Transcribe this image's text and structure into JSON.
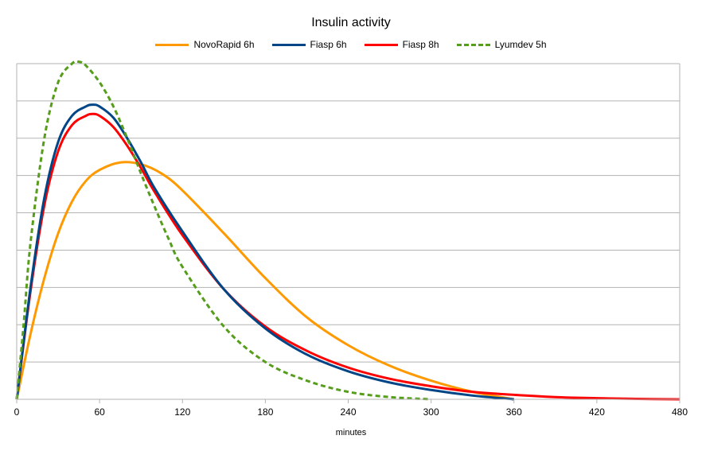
{
  "chart_data": {
    "type": "line",
    "title": "Insulin activity",
    "xlabel": "minutes",
    "ylabel": "",
    "xlim": [
      0,
      480
    ],
    "ylim": [
      0,
      9
    ],
    "xticks": [
      0,
      60,
      120,
      180,
      240,
      300,
      360,
      420,
      480
    ],
    "x_tick_labels": [
      "0",
      "60",
      "120",
      "180",
      "240",
      "300",
      "360",
      "420",
      "480"
    ],
    "y_gridlines": [
      1,
      2,
      3,
      4,
      5,
      6,
      7,
      8,
      9
    ],
    "y_tick_labels_shown": false,
    "grid": true,
    "legend_position": "top",
    "series": [
      {
        "name": "NovoRapid 6h",
        "color": "#ff9900",
        "dash": "solid",
        "x": [
          0,
          10,
          20,
          30,
          40,
          50,
          60,
          75,
          90,
          105,
          120,
          150,
          180,
          210,
          240,
          270,
          300,
          330,
          360
        ],
        "y": [
          0,
          1.75,
          3.25,
          4.45,
          5.3,
          5.85,
          6.15,
          6.35,
          6.3,
          6.05,
          5.6,
          4.45,
          3.25,
          2.2,
          1.45,
          0.9,
          0.5,
          0.2,
          0
        ]
      },
      {
        "name": "Fiasp 6h",
        "color": "#004586",
        "dash": "solid",
        "x": [
          0,
          10,
          20,
          30,
          40,
          50,
          55,
          60,
          70,
          80,
          90,
          100,
          120,
          150,
          180,
          210,
          240,
          270,
          300,
          330,
          360
        ],
        "y": [
          0,
          3.0,
          5.4,
          6.9,
          7.6,
          7.85,
          7.9,
          7.85,
          7.55,
          7.0,
          6.35,
          5.65,
          4.5,
          2.95,
          1.9,
          1.2,
          0.75,
          0.45,
          0.25,
          0.1,
          0
        ]
      },
      {
        "name": "Fiasp 8h",
        "color": "#ff0000",
        "dash": "solid",
        "x": [
          0,
          10,
          20,
          30,
          40,
          50,
          55,
          60,
          70,
          80,
          90,
          100,
          120,
          150,
          180,
          210,
          240,
          270,
          300,
          330,
          360,
          390,
          420,
          450,
          480
        ],
        "y": [
          0,
          2.9,
          5.2,
          6.65,
          7.35,
          7.6,
          7.65,
          7.6,
          7.3,
          6.8,
          6.2,
          5.55,
          4.4,
          2.95,
          1.95,
          1.3,
          0.85,
          0.55,
          0.35,
          0.2,
          0.12,
          0.06,
          0.03,
          0.01,
          0
        ]
      },
      {
        "name": "Lyumdev 5h",
        "color": "#579d1c",
        "dash": "dashed",
        "x": [
          0,
          5,
          10,
          20,
          30,
          40,
          45,
          50,
          60,
          70,
          80,
          90,
          100,
          110,
          120,
          150,
          180,
          210,
          240,
          270,
          300
        ],
        "y": [
          0,
          2.0,
          4.2,
          7.0,
          8.5,
          9.0,
          9.05,
          8.95,
          8.5,
          7.85,
          7.0,
          6.05,
          5.15,
          4.3,
          3.55,
          1.95,
          1.0,
          0.5,
          0.2,
          0.06,
          0
        ]
      }
    ]
  }
}
